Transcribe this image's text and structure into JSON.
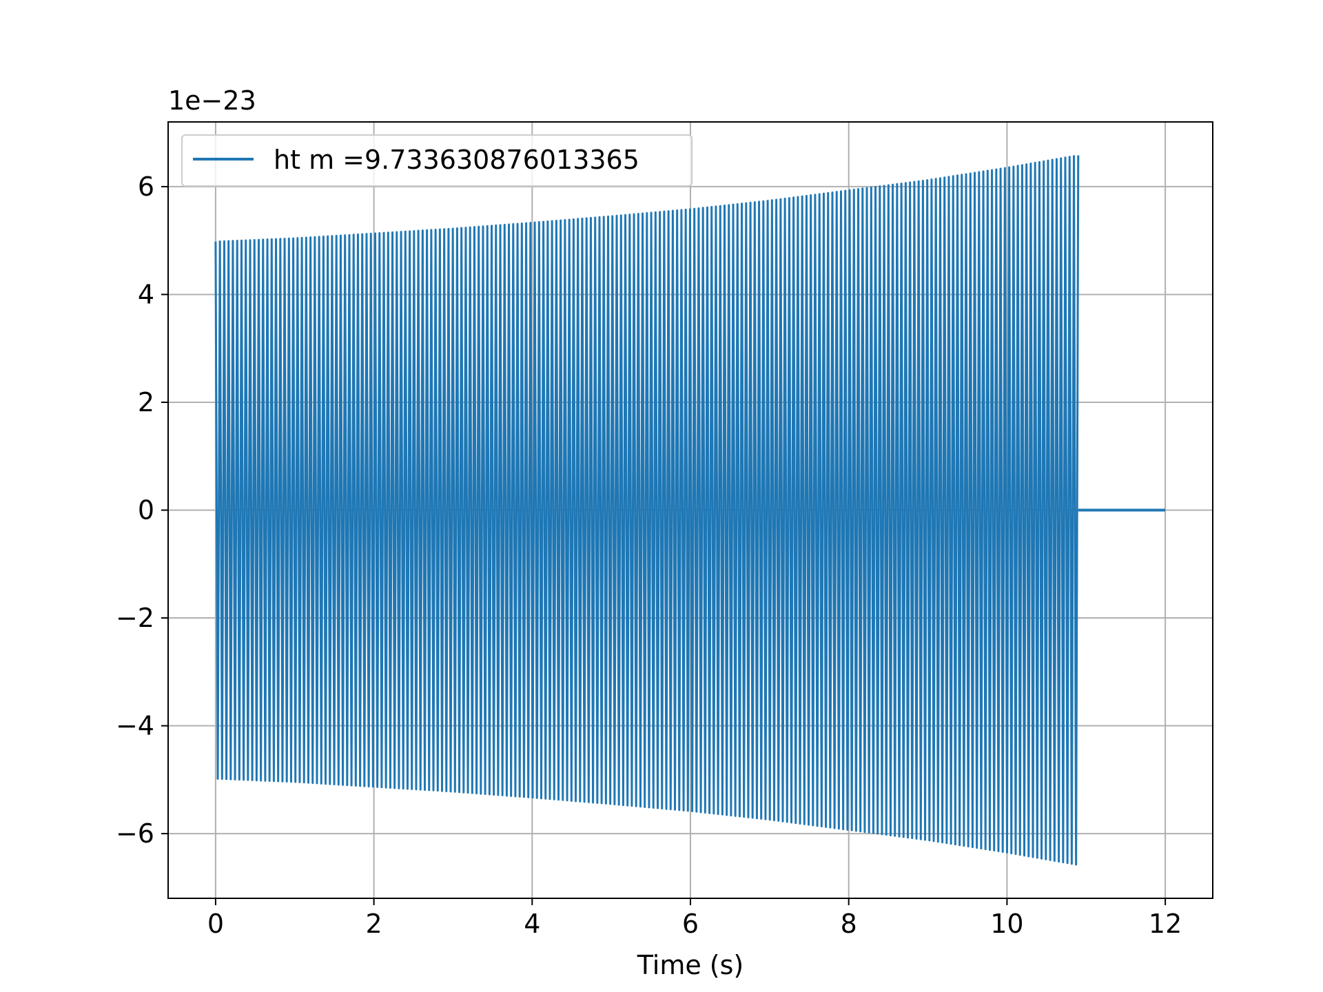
{
  "chart_data": {
    "type": "line",
    "title": "",
    "xlabel": "Time (s)",
    "ylabel": "",
    "y_offset_label": "1e−23",
    "xlim": [
      -0.6,
      12.6
    ],
    "ylim": [
      -7.2,
      7.2
    ],
    "x_ticks": [
      0,
      2,
      4,
      6,
      8,
      10,
      12
    ],
    "y_ticks": [
      -6,
      -4,
      -2,
      0,
      2,
      4,
      6
    ],
    "x_tick_labels": [
      "0",
      "2",
      "4",
      "6",
      "8",
      "10",
      "12"
    ],
    "y_tick_labels": [
      "−6",
      "−4",
      "−2",
      "0",
      "2",
      "4",
      "6"
    ],
    "grid": true,
    "legend_position": "upper-left",
    "series": [
      {
        "name": "ht m =9.733630876013365",
        "color": "#1f77b4",
        "oscillation_start": 0.0,
        "oscillation_end": 10.9,
        "amplitude_envelope": [
          {
            "t": 0.0,
            "a": 4.98
          },
          {
            "t": 1.0,
            "a": 5.04
          },
          {
            "t": 2.0,
            "a": 5.13
          },
          {
            "t": 3.0,
            "a": 5.22
          },
          {
            "t": 4.0,
            "a": 5.33
          },
          {
            "t": 5.0,
            "a": 5.45
          },
          {
            "t": 6.0,
            "a": 5.58
          },
          {
            "t": 7.0,
            "a": 5.74
          },
          {
            "t": 8.0,
            "a": 5.93
          },
          {
            "t": 9.0,
            "a": 6.12
          },
          {
            "t": 10.0,
            "a": 6.35
          },
          {
            "t": 10.9,
            "a": 6.58
          }
        ],
        "flat_segment": {
          "x": [
            10.9,
            12.0
          ],
          "y": [
            0,
            0
          ]
        }
      }
    ]
  }
}
